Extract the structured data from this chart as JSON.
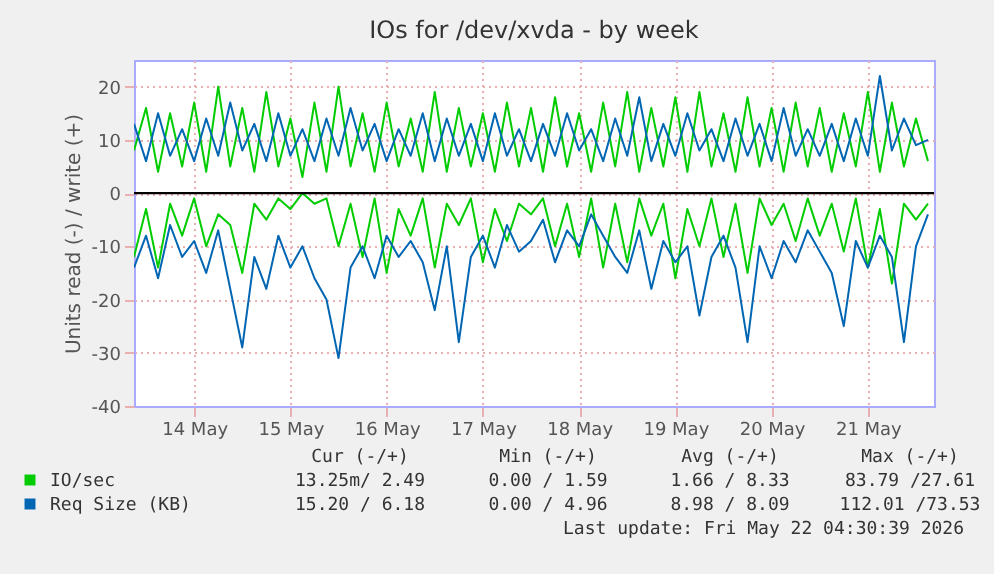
{
  "chart_data": {
    "type": "line",
    "title": "IOs for /dev/xvda - by week",
    "ylabel": "Units read (-) / write (+)",
    "x": [
      "2026-05-13T21:00",
      "2026-05-14T00:00",
      "2026-05-14T03:00",
      "2026-05-14T06:00",
      "2026-05-14T09:00",
      "2026-05-14T12:00",
      "2026-05-14T15:00",
      "2026-05-14T18:00",
      "2026-05-14T21:00",
      "2026-05-15T00:00",
      "2026-05-15T03:00",
      "2026-05-15T06:00",
      "2026-05-15T09:00",
      "2026-05-15T12:00",
      "2026-05-15T15:00",
      "2026-05-15T18:00",
      "2026-05-15T21:00",
      "2026-05-16T00:00",
      "2026-05-16T03:00",
      "2026-05-16T06:00",
      "2026-05-16T09:00",
      "2026-05-16T12:00",
      "2026-05-16T15:00",
      "2026-05-16T18:00",
      "2026-05-16T21:00",
      "2026-05-17T00:00",
      "2026-05-17T03:00",
      "2026-05-17T06:00",
      "2026-05-17T09:00",
      "2026-05-17T12:00",
      "2026-05-17T15:00",
      "2026-05-17T18:00",
      "2026-05-17T21:00",
      "2026-05-18T00:00",
      "2026-05-18T03:00",
      "2026-05-18T06:00",
      "2026-05-18T09:00",
      "2026-05-18T12:00",
      "2026-05-18T15:00",
      "2026-05-18T18:00",
      "2026-05-18T21:00",
      "2026-05-19T00:00",
      "2026-05-19T03:00",
      "2026-05-19T06:00",
      "2026-05-19T09:00",
      "2026-05-19T12:00",
      "2026-05-19T15:00",
      "2026-05-19T18:00",
      "2026-05-19T21:00",
      "2026-05-20T00:00",
      "2026-05-20T03:00",
      "2026-05-20T06:00",
      "2026-05-20T09:00",
      "2026-05-20T12:00",
      "2026-05-20T15:00",
      "2026-05-20T18:00",
      "2026-05-20T21:00",
      "2026-05-21T00:00",
      "2026-05-21T03:00",
      "2026-05-21T06:00",
      "2026-05-21T09:00",
      "2026-05-21T12:00",
      "2026-05-21T15:00",
      "2026-05-21T18:00",
      "2026-05-21T21:00",
      "2026-05-22T00:00",
      "2026-05-22T03:00"
    ],
    "series": [
      {
        "name": "IO/sec",
        "color": "#00cc00",
        "values": [
          8,
          16,
          4,
          15,
          5,
          17,
          4,
          20,
          5,
          16,
          4,
          19,
          5,
          14,
          3,
          17,
          4,
          20,
          5,
          15,
          4,
          17,
          5,
          14,
          4,
          19,
          4,
          16,
          5,
          15,
          4,
          17,
          5,
          16,
          4,
          18,
          5,
          15,
          4,
          17,
          5,
          19,
          4,
          16,
          5,
          18,
          4,
          19,
          5,
          15,
          4,
          18,
          5,
          16,
          4,
          17,
          5,
          16,
          4,
          15,
          5,
          19,
          4,
          17,
          5,
          14,
          6
        ]
      },
      {
        "color": "#00cc00",
        "values": [
          -12,
          -3,
          -14,
          -2,
          -8,
          -1,
          -10,
          -4,
          -6,
          -15,
          -2,
          -5,
          -1,
          -3,
          0,
          -2,
          -1,
          -10,
          -2,
          -12,
          -1,
          -15,
          -3,
          -8,
          -1,
          -14,
          -2,
          -6,
          -1,
          -13,
          -3,
          -9,
          -2,
          -4,
          -1,
          -10,
          -2,
          -12,
          -1,
          -14,
          -2,
          -13,
          -1,
          -8,
          -2,
          -16,
          -3,
          -10,
          -1,
          -12,
          -2,
          -15,
          -1,
          -6,
          -2,
          -9,
          -1,
          -8,
          -2,
          -11,
          -1,
          -14,
          -3,
          -17,
          -2,
          -5,
          -2
        ]
      },
      {
        "name": "Req Size (KB)",
        "color": "#0066b3",
        "values": [
          13,
          6,
          15,
          7,
          12,
          6,
          14,
          7,
          17,
          8,
          13,
          6,
          15,
          7,
          12,
          6,
          14,
          7,
          16,
          8,
          13,
          6,
          12,
          7,
          15,
          6,
          14,
          7,
          13,
          6,
          15,
          7,
          12,
          6,
          13,
          7,
          15,
          8,
          12,
          6,
          14,
          7,
          18,
          6,
          13,
          7,
          15,
          8,
          12,
          6,
          14,
          7,
          13,
          6,
          16,
          7,
          12,
          7,
          13,
          6,
          14,
          7,
          22,
          8,
          14,
          9,
          10
        ]
      },
      {
        "color": "#0066b3",
        "values": [
          -14,
          -8,
          -16,
          -6,
          -12,
          -9,
          -15,
          -7,
          -18,
          -29,
          -12,
          -18,
          -8,
          -14,
          -10,
          -16,
          -20,
          -31,
          -14,
          -10,
          -16,
          -8,
          -12,
          -9,
          -13,
          -22,
          -10,
          -28,
          -12,
          -8,
          -14,
          -6,
          -11,
          -9,
          -5,
          -13,
          -7,
          -10,
          -4,
          -8,
          -12,
          -15,
          -7,
          -18,
          -9,
          -13,
          -10,
          -23,
          -12,
          -8,
          -14,
          -28,
          -10,
          -16,
          -9,
          -13,
          -7,
          -11,
          -15,
          -25,
          -9,
          -14,
          -8,
          -12,
          -28,
          -10,
          -4
        ]
      }
    ],
    "xlim": [
      "2026-05-13T21:00",
      "2026-05-22T04:30"
    ],
    "xticks": [
      {
        "value": "2026-05-14T12:00",
        "label": "14 May"
      },
      {
        "value": "2026-05-15T12:00",
        "label": "15 May"
      },
      {
        "value": "2026-05-16T12:00",
        "label": "16 May"
      },
      {
        "value": "2026-05-17T12:00",
        "label": "17 May"
      },
      {
        "value": "2026-05-18T12:00",
        "label": "18 May"
      },
      {
        "value": "2026-05-19T12:00",
        "label": "19 May"
      },
      {
        "value": "2026-05-20T12:00",
        "label": "20 May"
      },
      {
        "value": "2026-05-21T12:00",
        "label": "21 May"
      }
    ],
    "ylim": [
      -40,
      25
    ],
    "yticks": [
      -40,
      -30,
      -20,
      -10,
      0,
      10,
      20
    ],
    "grid": true,
    "legend": "bottom left",
    "ref_lines": [
      {
        "axis": "y",
        "value": 0,
        "color": "#000000"
      }
    ],
    "annotations": [
      "Cur (-/+)",
      "Min (-/+)",
      "Avg (-/+)",
      "Max (-/+)",
      "13.25m/ 2.49",
      "0.00 / 1.59",
      "1.66 / 8.33",
      "83.79 /27.61",
      "15.20 / 6.18",
      "0.00 / 4.96",
      "8.98 / 8.09",
      "112.01 /73.53",
      "Last update: Fri May 22 04:30:39 2026"
    ]
  }
}
